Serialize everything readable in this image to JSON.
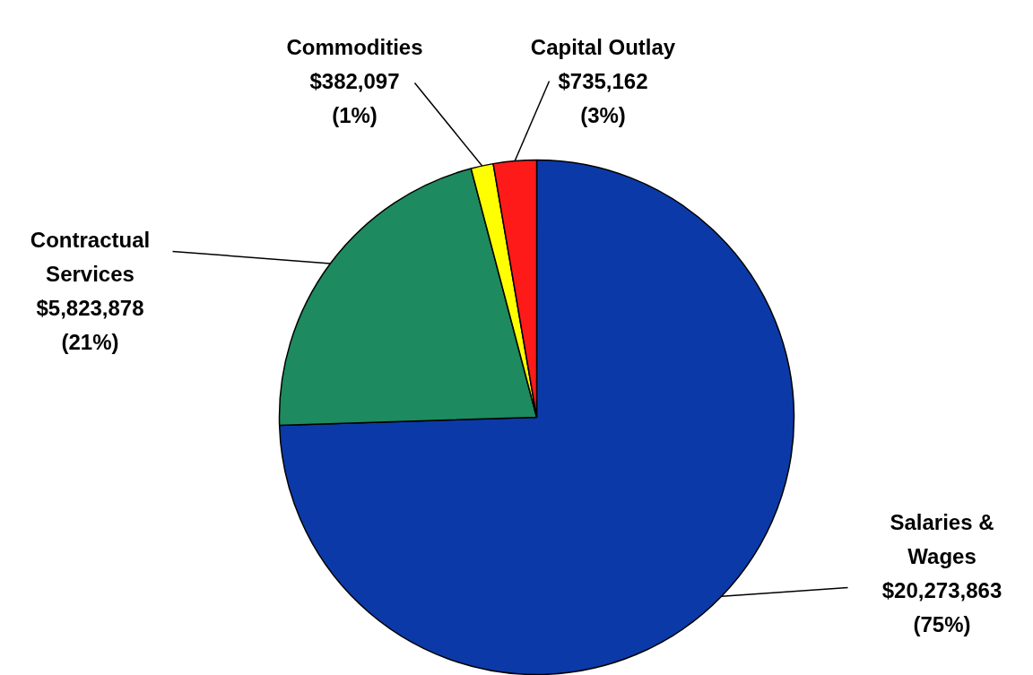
{
  "chart_data": {
    "type": "pie",
    "categories": [
      "Salaries & Wages",
      "Contractual Services",
      "Commodities",
      "Capital Outlay"
    ],
    "values": [
      20273863,
      5823878,
      382097,
      735162
    ],
    "colors": [
      "#0b3aa8",
      "#1d8a5f",
      "#ffff00",
      "#ff1a1a"
    ],
    "value_labels": [
      "$20,273,863\n(75%)",
      "$5,823,878\n(21%)",
      "$382,097\n(1%)",
      "$735,162\n(3%)"
    ]
  }
}
